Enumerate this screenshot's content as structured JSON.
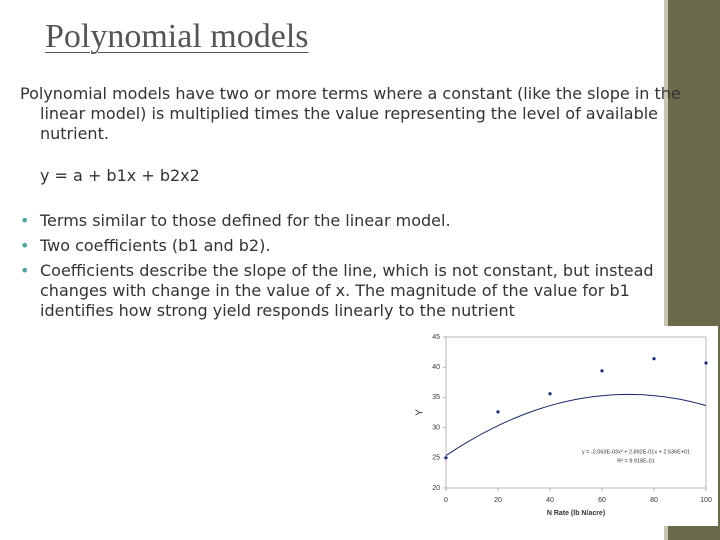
{
  "slide": {
    "title": "Polynomial models",
    "intro": "Polynomial models have two or more terms where a constant (like the slope in the linear model) is multiplied times the value representing the level of available nutrient.",
    "equation": "y = a + b1x + b2x2",
    "bullets": [
      "Terms similar to those defined for the linear model.",
      "Two coefficients (b1 and b2).",
      "Coefficients describe the slope of the line, which is not constant, but instead changes with change in the value of x.  The magnitude of the value for b1 identifies how strong yield responds linearly to the nutrient"
    ]
  },
  "chart_data": {
    "type": "scatter",
    "x_label": "N Rate (lb N/acre)",
    "y_label": "Y",
    "series": [
      {
        "color": "#1a2a6c",
        "x": [
          0,
          20,
          40,
          60,
          80,
          100
        ],
        "values": [
          25.0,
          32.6,
          35.6,
          39.4,
          41.4,
          40.7
        ]
      }
    ],
    "trendline": {
      "equation": "y = -2.063E-03x² + 2.892E-01x + 2.536E+01",
      "r2": "R² = 9.918E-01",
      "coefficients": [
        -0.002063,
        0.2892,
        25.36
      ],
      "color": "#1a2a6c"
    },
    "xlim": [
      0,
      100
    ],
    "xticks": [
      0,
      20,
      40,
      60,
      80,
      100
    ],
    "ylim": [
      20,
      45
    ],
    "yticks": [
      20,
      25,
      30,
      35,
      40,
      45
    ]
  }
}
